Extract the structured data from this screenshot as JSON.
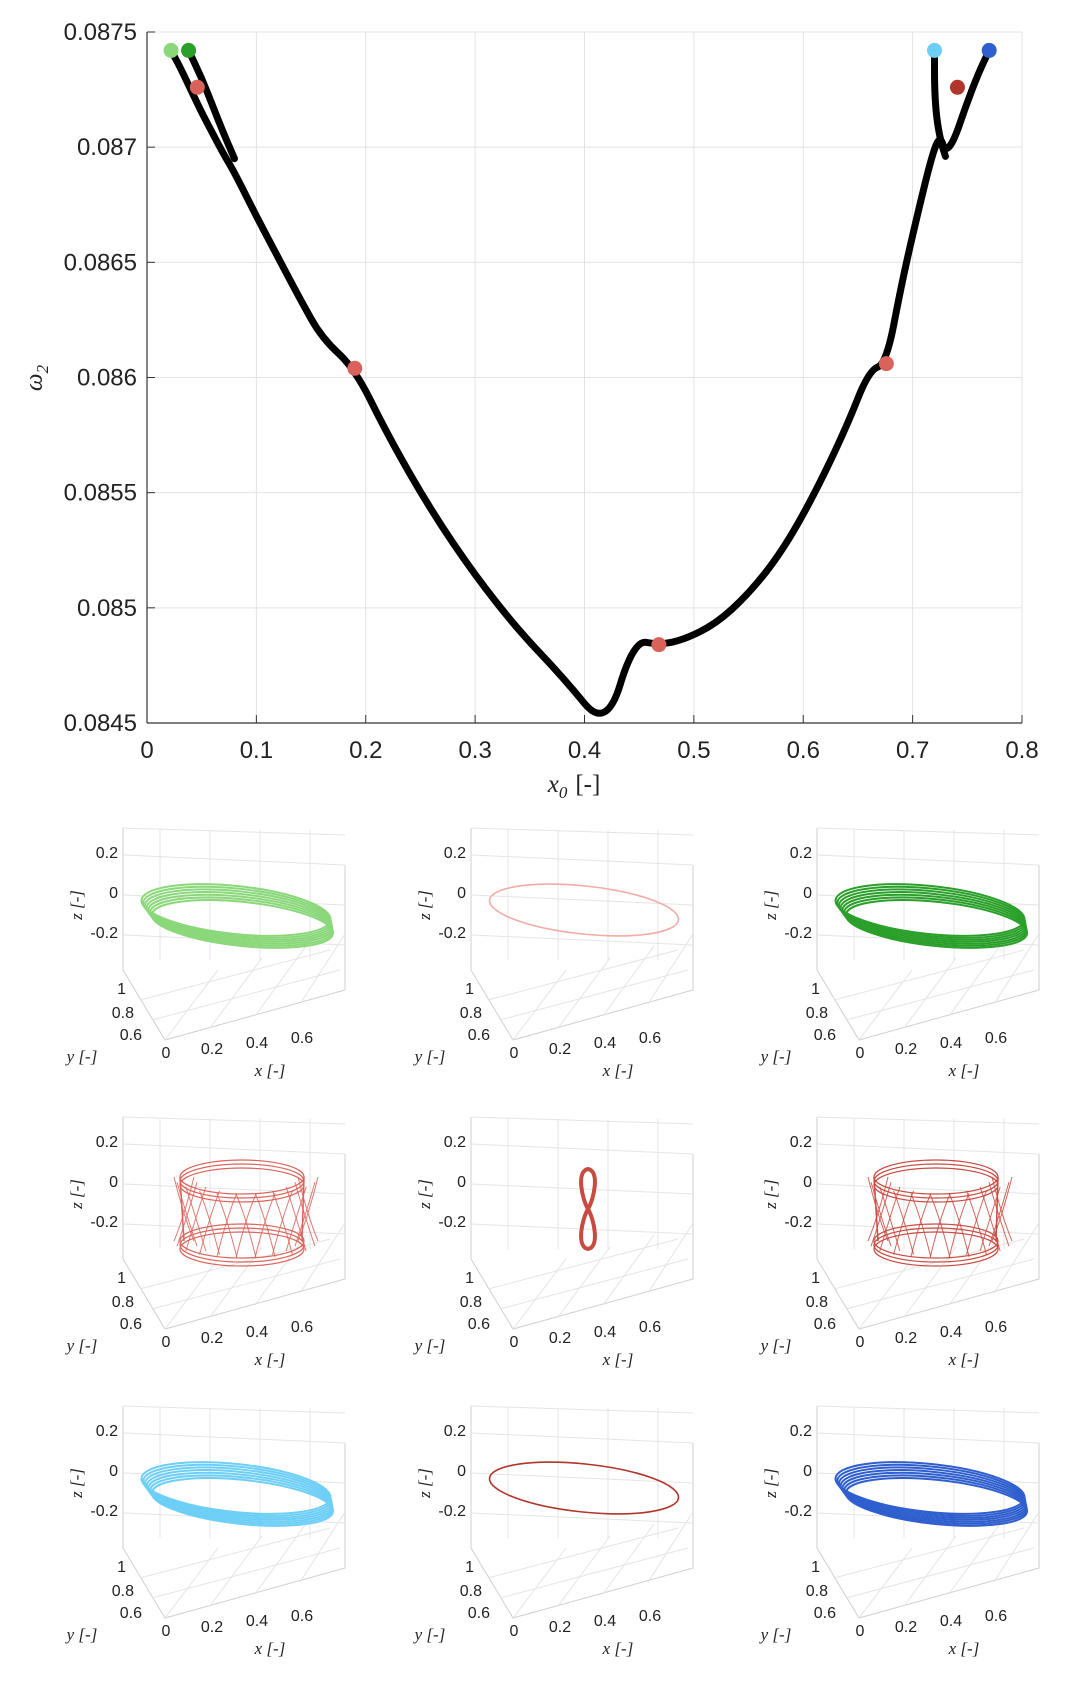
{
  "chart_data": [
    {
      "type": "line",
      "xlabel_var": "x",
      "xlabel_sub": "0",
      "xlabel_unit": "[-]",
      "ylabel_var": "ω",
      "ylabel_sub": "2",
      "xlim": [
        0,
        0.8
      ],
      "ylim": [
        0.0845,
        0.0875
      ],
      "x_ticks": [
        "0",
        "0.1",
        "0.2",
        "0.3",
        "0.4",
        "0.5",
        "0.6",
        "0.7",
        "0.8"
      ],
      "y_ticks": [
        "0.0845",
        "0.085",
        "0.0855",
        "0.086",
        "0.0865",
        "0.087",
        "0.0875"
      ],
      "grid": true,
      "series": [
        {
          "color": "#000000",
          "x": [
            0.022,
            0.03,
            0.04,
            0.05,
            0.06,
            0.07,
            0.08,
            0.1,
            0.12,
            0.14,
            0.16,
            0.19,
            0.22,
            0.26,
            0.3,
            0.34,
            0.38,
            0.42,
            0.445,
            0.468,
            0.49,
            0.52,
            0.55,
            0.58,
            0.61,
            0.64,
            0.66,
            0.676,
            0.69,
            0.705,
            0.718,
            0.725,
            0.73,
            0.738,
            0.748,
            0.76,
            0.77
          ],
          "y": [
            0.08742,
            0.08735,
            0.08725,
            0.08715,
            0.08706,
            0.08697,
            0.08689,
            0.0867,
            0.08652,
            0.08634,
            0.08617,
            0.08604,
            0.08575,
            0.08542,
            0.08514,
            0.0849,
            0.0847,
            0.08447,
            0.08486,
            0.08484,
            0.08486,
            0.08493,
            0.08506,
            0.08524,
            0.08549,
            0.08579,
            0.08603,
            0.08606,
            0.08641,
            0.08672,
            0.08697,
            0.08705,
            0.08698,
            0.08703,
            0.08717,
            0.08732,
            0.08742
          ]
        },
        {
          "color": "#000000",
          "x": [
            0.038,
            0.05,
            0.06,
            0.07,
            0.08
          ],
          "y": [
            0.08742,
            0.0873,
            0.08718,
            0.08706,
            0.08695
          ]
        },
        {
          "color": "#000000",
          "x": [
            0.72,
            0.72,
            0.722,
            0.726,
            0.73
          ],
          "y": [
            0.08742,
            0.08725,
            0.08712,
            0.08702,
            0.08696
          ]
        }
      ],
      "markers": [
        {
          "x": 0.022,
          "y": 0.08742,
          "color": "#8ad87a"
        },
        {
          "x": 0.038,
          "y": 0.08742,
          "color": "#2aa02a"
        },
        {
          "x": 0.046,
          "y": 0.08726,
          "color": "#d9635b"
        },
        {
          "x": 0.19,
          "y": 0.08604,
          "color": "#d9635b"
        },
        {
          "x": 0.468,
          "y": 0.08484,
          "color": "#d9635b"
        },
        {
          "x": 0.676,
          "y": 0.08606,
          "color": "#d9635b"
        },
        {
          "x": 0.72,
          "y": 0.08742,
          "color": "#6ecff6"
        },
        {
          "x": 0.741,
          "y": 0.08726,
          "color": "#b0352b"
        },
        {
          "x": 0.77,
          "y": 0.08742,
          "color": "#2f5fcf"
        }
      ]
    },
    {
      "type": "line",
      "panels_3d": true,
      "xlabel_var": "x",
      "ylabel_var": "y",
      "zlabel_var": "z",
      "unit": "[-]",
      "x_ticks": [
        "0",
        "0.2",
        "0.4",
        "0.6"
      ],
      "y_ticks": [
        "1",
        "0.8",
        "0.6"
      ],
      "z_ticks": [
        "0.2",
        "0",
        "-0.2"
      ],
      "panels": [
        {
          "color": "#8ad87a",
          "shape": "ring",
          "thick": true
        },
        {
          "color": "#f2aca5",
          "shape": "ring",
          "thick": false
        },
        {
          "color": "#2aa02a",
          "shape": "ring",
          "thick": true
        },
        {
          "color": "#d9635b",
          "shape": "cage"
        },
        {
          "color": "#c84a40",
          "shape": "figure8"
        },
        {
          "color": "#c84a40",
          "shape": "cage"
        },
        {
          "color": "#6ecff6",
          "shape": "ring",
          "thick": true
        },
        {
          "color": "#b0352b",
          "shape": "ring",
          "thick": false
        },
        {
          "color": "#2f5fcf",
          "shape": "ring",
          "thick": true
        }
      ]
    }
  ]
}
